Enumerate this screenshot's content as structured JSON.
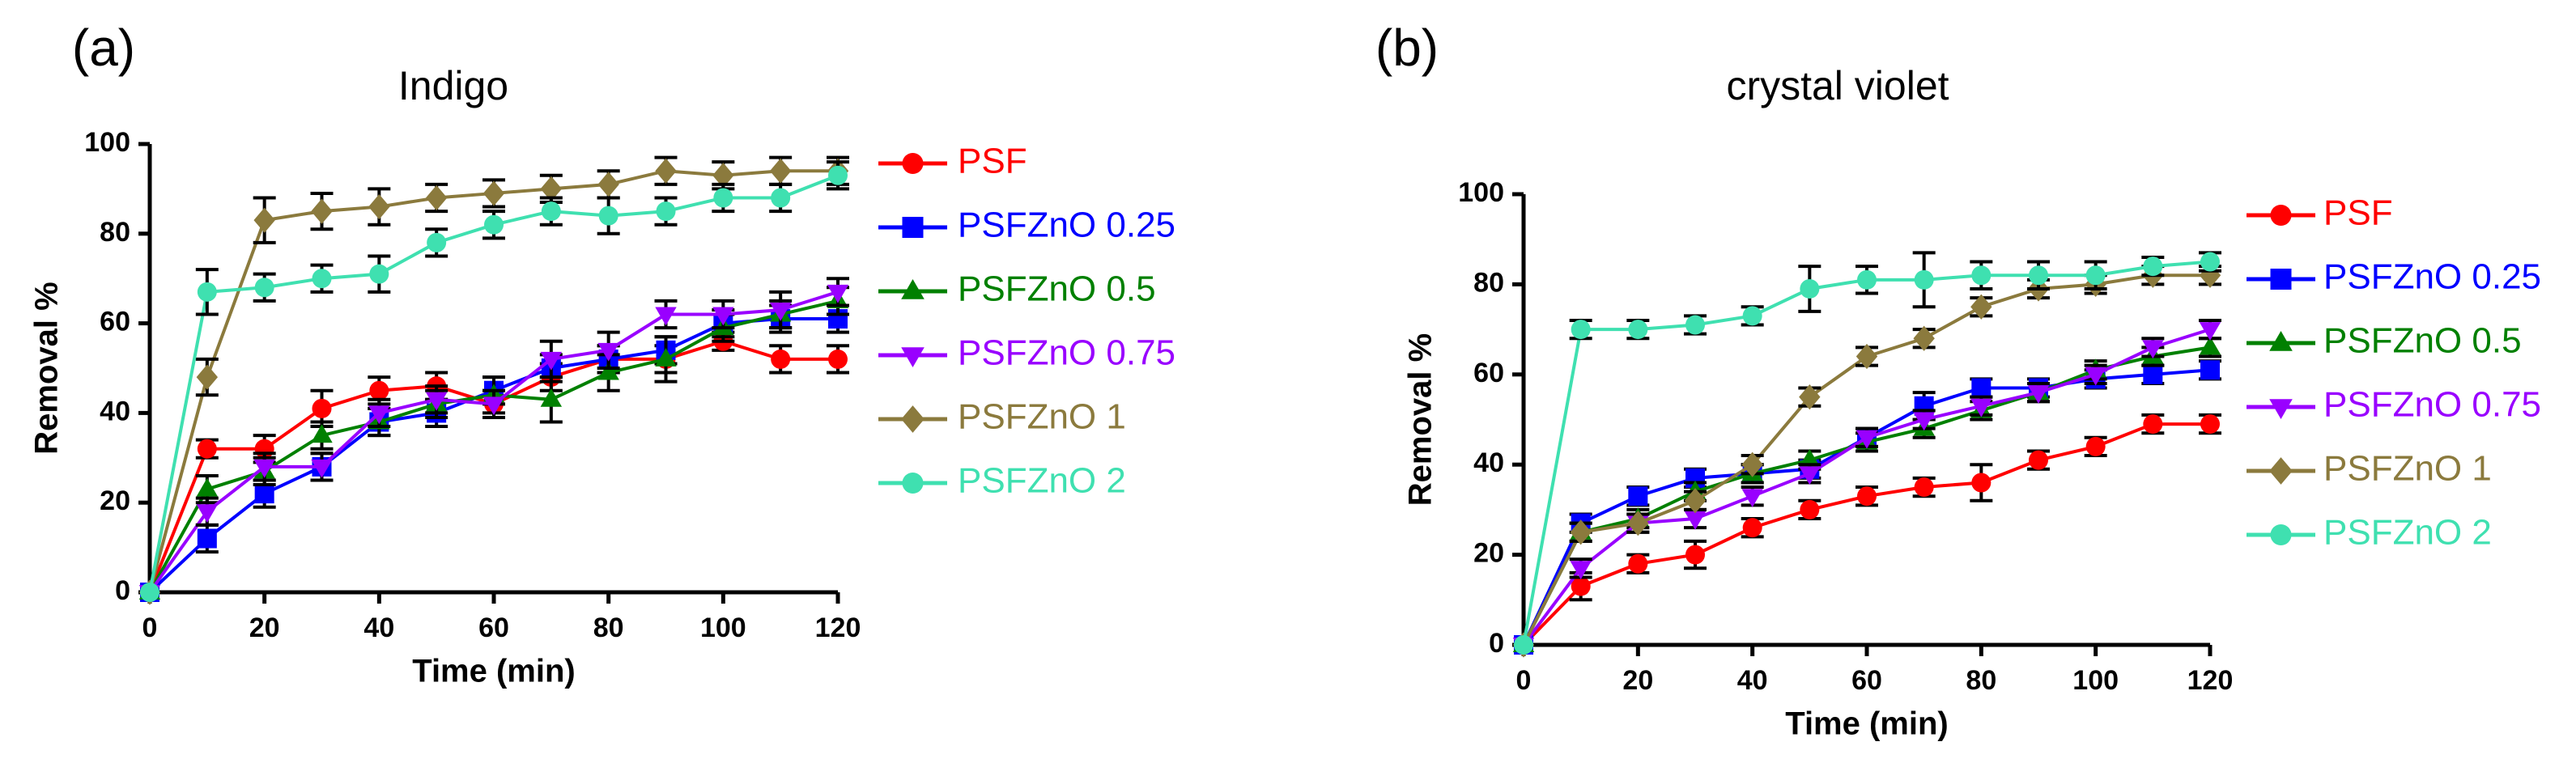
{
  "chart_data": [
    {
      "type": "line",
      "panel": "(a)",
      "title": "Indigo",
      "xlabel": "Time (min)",
      "ylabel": "Removal  %",
      "xlim": [
        0,
        120
      ],
      "ylim": [
        0,
        100
      ],
      "xticks": [
        0,
        20,
        40,
        60,
        80,
        100,
        120
      ],
      "yticks": [
        0,
        20,
        40,
        60,
        80,
        100
      ],
      "legend_position": "right",
      "x": [
        0,
        10,
        20,
        30,
        40,
        50,
        60,
        70,
        80,
        90,
        100,
        110,
        120
      ],
      "series": [
        {
          "name": "PSF",
          "color": "#ff0000",
          "marker": "circle",
          "values": [
            0,
            32,
            32,
            41,
            45,
            46,
            42,
            48,
            52,
            52,
            56,
            52,
            52
          ],
          "errors": [
            0,
            2,
            3,
            4,
            3,
            3,
            3,
            3,
            3,
            3,
            2,
            3,
            3
          ]
        },
        {
          "name": "PSFZnO 0.25",
          "color": "#0000ff",
          "marker": "square",
          "values": [
            0,
            12,
            22,
            28,
            38,
            40,
            45,
            50,
            52,
            54,
            60,
            61,
            61
          ],
          "errors": [
            0,
            3,
            3,
            3,
            3,
            3,
            3,
            3,
            3,
            3,
            3,
            3,
            3
          ]
        },
        {
          "name": "PSFZnO 0.5",
          "color": "#008000",
          "marker": "triangle-up",
          "values": [
            0,
            23,
            27,
            35,
            38,
            42,
            44,
            43,
            49,
            52,
            59,
            62,
            65
          ],
          "errors": [
            0,
            3,
            3,
            3,
            3,
            3,
            4,
            5,
            4,
            5,
            3,
            3,
            3
          ]
        },
        {
          "name": "PSFZnO 0.75",
          "color": "#9900ff",
          "marker": "triangle-down",
          "values": [
            0,
            18,
            28,
            28,
            40,
            43,
            42,
            52,
            54,
            62,
            62,
            63,
            67
          ],
          "errors": [
            0,
            3,
            3,
            3,
            3,
            3,
            3,
            4,
            4,
            3,
            3,
            4,
            3
          ]
        },
        {
          "name": "PSFZnO 1",
          "color": "#8b7a3d",
          "marker": "diamond",
          "values": [
            0,
            48,
            83,
            85,
            86,
            88,
            89,
            90,
            91,
            94,
            93,
            94,
            94
          ],
          "errors": [
            0,
            4,
            5,
            4,
            4,
            3,
            3,
            3,
            3,
            3,
            3,
            3,
            3
          ]
        },
        {
          "name": "PSFZnO 2",
          "color": "#3fe0b0",
          "marker": "circle",
          "values": [
            0,
            67,
            68,
            70,
            71,
            78,
            82,
            85,
            84,
            85,
            88,
            88,
            93
          ],
          "errors": [
            0,
            5,
            3,
            3,
            4,
            3,
            3,
            3,
            4,
            3,
            3,
            3,
            3
          ]
        }
      ]
    },
    {
      "type": "line",
      "panel": "(b)",
      "title": "crystal violet",
      "xlabel": "Time (min)",
      "ylabel": "Removal  %",
      "xlim": [
        0,
        120
      ],
      "ylim": [
        0,
        100
      ],
      "xticks": [
        0,
        20,
        40,
        60,
        80,
        100,
        120
      ],
      "yticks": [
        0,
        20,
        40,
        60,
        80,
        100
      ],
      "legend_position": "right",
      "x": [
        0,
        10,
        20,
        30,
        40,
        50,
        60,
        70,
        80,
        90,
        100,
        110,
        120
      ],
      "series": [
        {
          "name": "PSF",
          "color": "#ff0000",
          "marker": "circle",
          "values": [
            0,
            13,
            18,
            20,
            26,
            30,
            33,
            35,
            36,
            41,
            44,
            49,
            49
          ],
          "errors": [
            0,
            3,
            2,
            3,
            2,
            2,
            2,
            2,
            4,
            2,
            2,
            2,
            2
          ]
        },
        {
          "name": "PSFZnO 0.25",
          "color": "#0000ff",
          "marker": "square",
          "values": [
            0,
            27,
            33,
            37,
            38,
            39,
            46,
            53,
            57,
            57,
            59,
            60,
            61
          ],
          "errors": [
            0,
            2,
            2,
            2,
            2,
            2,
            2,
            3,
            2,
            2,
            2,
            2,
            2
          ]
        },
        {
          "name": "PSFZnO 0.5",
          "color": "#008000",
          "marker": "triangle-up",
          "values": [
            0,
            25,
            28,
            34,
            38,
            41,
            45,
            48,
            52,
            56,
            61,
            64,
            66
          ],
          "errors": [
            0,
            2,
            2,
            2,
            2,
            2,
            2,
            2,
            2,
            2,
            2,
            2,
            2
          ]
        },
        {
          "name": "PSFZnO 0.75",
          "color": "#9900ff",
          "marker": "triangle-down",
          "values": [
            0,
            17,
            27,
            28,
            33,
            38,
            46,
            50,
            53,
            56,
            60,
            66,
            70
          ],
          "errors": [
            0,
            2,
            2,
            2,
            2,
            2,
            2,
            2,
            2,
            2,
            2,
            2,
            2
          ]
        },
        {
          "name": "PSFZnO 1",
          "color": "#8b7a3d",
          "marker": "diamond",
          "values": [
            0,
            25,
            27,
            32,
            40,
            55,
            64,
            68,
            75,
            79,
            80,
            82,
            82
          ],
          "errors": [
            0,
            2,
            2,
            2,
            2,
            2,
            2,
            2,
            2,
            2,
            2,
            2,
            2
          ]
        },
        {
          "name": "PSFZnO 2",
          "color": "#3fe0b0",
          "marker": "circle",
          "values": [
            0,
            70,
            70,
            71,
            73,
            79,
            81,
            81,
            82,
            82,
            82,
            84,
            85
          ],
          "errors": [
            0,
            2,
            2,
            2,
            2,
            5,
            3,
            6,
            3,
            3,
            3,
            2,
            2
          ]
        }
      ]
    }
  ]
}
